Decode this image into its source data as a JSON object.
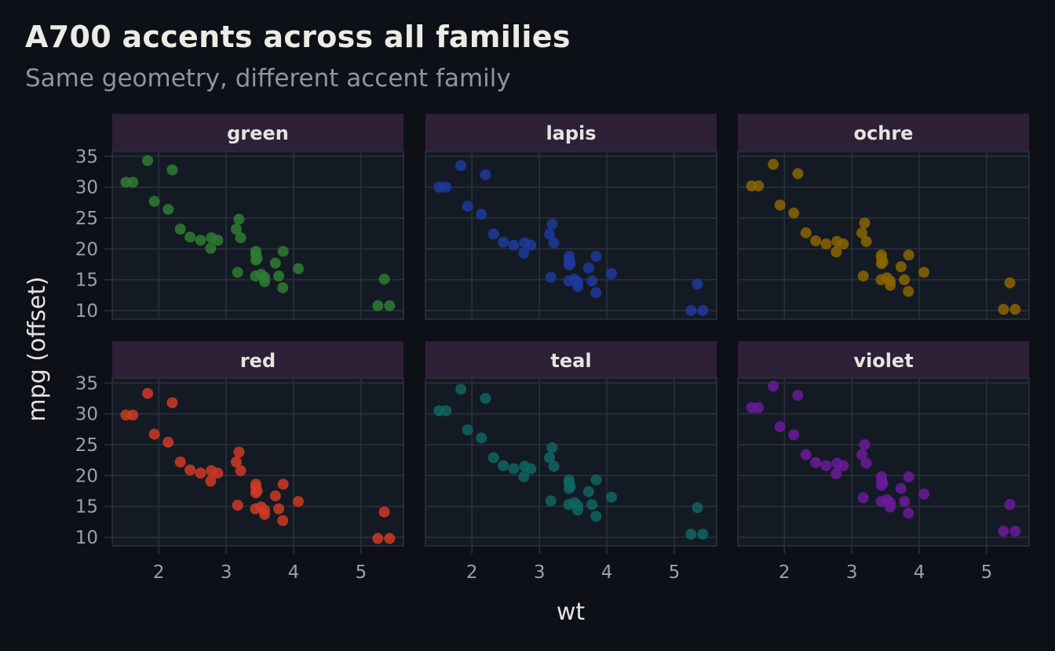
{
  "header": {
    "title": "A700 accents across all families",
    "subtitle": "Same geometry, different accent family"
  },
  "chart_data": {
    "type": "scatter",
    "title": "A700 accents across all families",
    "subtitle": "Same geometry, different accent family",
    "xlabel": "wt",
    "ylabel": "mpg (offset)",
    "xlim": [
      1.31,
      5.63
    ],
    "ylim": [
      8.6,
      35.8
    ],
    "x_ticks": [
      2,
      3,
      4,
      5
    ],
    "y_ticks": [
      10,
      15,
      20,
      25,
      30,
      35
    ],
    "grid": true,
    "legend": "none",
    "facet_layout": "2 rows x 3 columns",
    "base_x": [
      2.62,
      2.875,
      2.32,
      3.215,
      3.44,
      3.46,
      3.57,
      3.19,
      3.15,
      3.44,
      3.44,
      4.07,
      3.73,
      3.78,
      5.25,
      5.424,
      5.345,
      2.2,
      1.615,
      1.835,
      2.465,
      3.52,
      3.435,
      3.84,
      3.845,
      1.935,
      2.14,
      1.513,
      3.17,
      2.77,
      3.57,
      2.78
    ],
    "base_y": [
      21.0,
      21.0,
      22.8,
      21.4,
      18.7,
      18.1,
      14.3,
      24.4,
      22.8,
      19.2,
      17.8,
      16.4,
      17.3,
      15.2,
      10.4,
      10.4,
      14.7,
      32.4,
      30.4,
      33.9,
      21.5,
      15.5,
      15.2,
      13.3,
      19.2,
      27.3,
      26.0,
      30.4,
      15.8,
      19.7,
      15.0,
      21.4
    ],
    "facets": [
      {
        "name": "green",
        "color": "#2e7d32",
        "y_offset": 0.4
      },
      {
        "name": "lapis",
        "color": "#1e3a9e",
        "y_offset": -0.4
      },
      {
        "name": "ochre",
        "color": "#8a6500",
        "y_offset": -0.2
      },
      {
        "name": "red",
        "color": "#d03a24",
        "y_offset": -0.6
      },
      {
        "name": "teal",
        "color": "#0e6660",
        "y_offset": 0.1
      },
      {
        "name": "violet",
        "color": "#6a1b9a",
        "y_offset": 0.6
      }
    ]
  },
  "theme": {
    "background": "#0d1017",
    "panel_bg": "#141a23",
    "strip_bg": "#2e2037",
    "grid": "#2c323d",
    "tick_text": "#9aa0ac"
  }
}
